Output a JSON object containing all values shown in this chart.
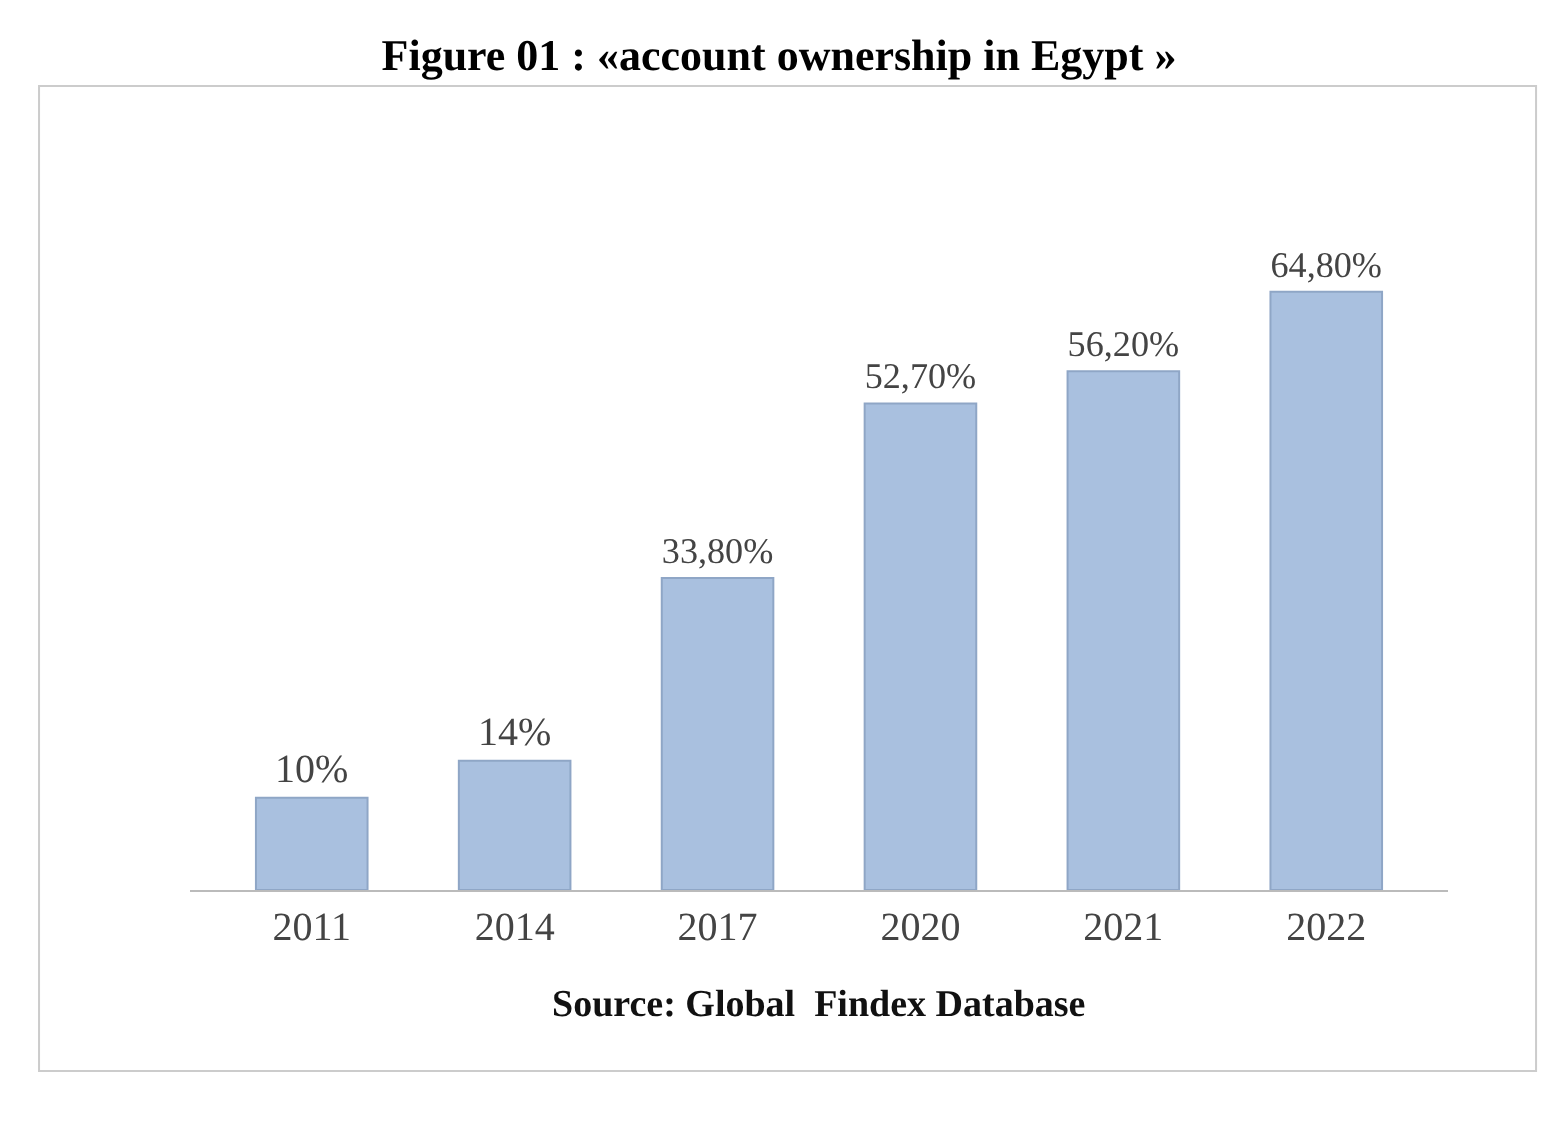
{
  "chart_data": {
    "type": "bar",
    "title": "Figure 01 : «account ownership in Egypt »",
    "categories": [
      "2011",
      "2014",
      "2017",
      "2020",
      "2021",
      "2022"
    ],
    "values": [
      10,
      14,
      33.8,
      52.7,
      56.2,
      64.8
    ],
    "value_labels": [
      "10%",
      "14%",
      "33,80%",
      "52,70%",
      "56,20%",
      "64,80%"
    ],
    "color": "#a9c0df",
    "annotations": [
      "Source: Global  Findex Database"
    ]
  }
}
